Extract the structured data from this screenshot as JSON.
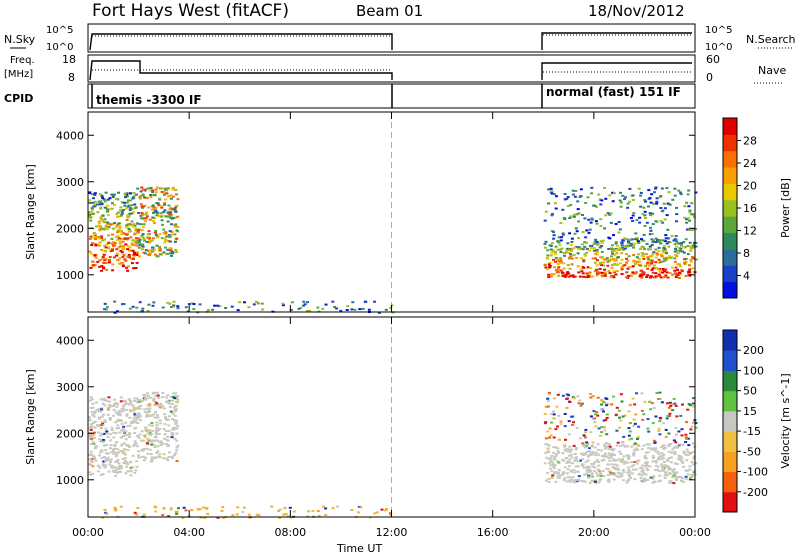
{
  "header": {
    "title": "Fort Hays West (fitACF)",
    "beam": "Beam 01",
    "date": "18/Nov/2012"
  },
  "top_panels": {
    "nsky_label": "N.Sky",
    "nsearch_label": "N.Search",
    "exp_tick_top": "10^5",
    "exp_tick_bottom": "10^0",
    "freq_label": "Freq.",
    "freq_unit": "[MHz]",
    "freq_ticks": [
      "18",
      "8"
    ],
    "nave_label": "Nave",
    "nave_ticks": [
      "60",
      "0"
    ],
    "cpid_label": "CPID",
    "cpid_segments": [
      "themis -3300 IF",
      "normal (fast) 151 IF"
    ]
  },
  "chart_data": [
    {
      "type": "heatmap",
      "name": "power",
      "ylabel": "Slant Range [km]",
      "ylim": [
        200,
        4500
      ],
      "yticks": [
        1000,
        2000,
        3000,
        4000
      ],
      "xlim": [
        0,
        24
      ],
      "colorbar": {
        "label": "Power [dB]",
        "ticks": [
          "4",
          "8",
          "12",
          "16",
          "20",
          "24",
          "28"
        ],
        "colors": [
          "#0010e0",
          "#1a40c8",
          "#2b6e9a",
          "#2e8a5a",
          "#5aa83a",
          "#9ac020",
          "#e8c800",
          "#f8a000",
          "#f87000",
          "#f03000",
          "#e00000"
        ]
      },
      "regions": [
        {
          "t0": 0.0,
          "t1": 1.9,
          "r0": 1100,
          "r1": 2800,
          "level": "high"
        },
        {
          "t0": 1.9,
          "t1": 3.5,
          "r0": 1400,
          "r1": 2900,
          "level": "mid"
        },
        {
          "t0": 18.0,
          "t1": 24.0,
          "r0": 950,
          "r1": 1800,
          "level": "high"
        },
        {
          "t0": 18.0,
          "t1": 24.0,
          "r0": 1800,
          "r1": 2900,
          "level": "low"
        },
        {
          "t0": 0.5,
          "t1": 12.0,
          "r0": 200,
          "r1": 450,
          "level": "low"
        }
      ]
    },
    {
      "type": "heatmap",
      "name": "velocity",
      "ylabel": "Slant Range [km]",
      "ylim": [
        200,
        4500
      ],
      "yticks": [
        1000,
        2000,
        3000,
        4000
      ],
      "xlim": [
        0,
        24
      ],
      "xticks": [
        "00:00",
        "04:00",
        "08:00",
        "12:00",
        "16:00",
        "20:00",
        "00:00"
      ],
      "xlabel": "Time UT",
      "colorbar": {
        "label": "Velocity [m s^-1]",
        "ticks": [
          "200",
          "100",
          "50",
          "15",
          "-15",
          "-50",
          "-100",
          "-200"
        ],
        "colors": [
          "#1030b0",
          "#2050d0",
          "#2a8a3a",
          "#60c040",
          "#c8c8c0",
          "#f0c040",
          "#f8a020",
          "#f86010",
          "#e01010"
        ]
      },
      "regions": [
        {
          "t0": 0.0,
          "t1": 1.9,
          "r0": 1100,
          "r1": 2800,
          "level": "ground"
        },
        {
          "t0": 1.9,
          "t1": 3.5,
          "r0": 1400,
          "r1": 2900,
          "level": "ground"
        },
        {
          "t0": 18.0,
          "t1": 24.0,
          "r0": 950,
          "r1": 1800,
          "level": "ground"
        },
        {
          "t0": 18.0,
          "t1": 24.0,
          "r0": 1800,
          "r1": 2900,
          "level": "mixed"
        },
        {
          "t0": 0.5,
          "t1": 12.0,
          "r0": 200,
          "r1": 450,
          "level": "negative"
        }
      ]
    }
  ]
}
